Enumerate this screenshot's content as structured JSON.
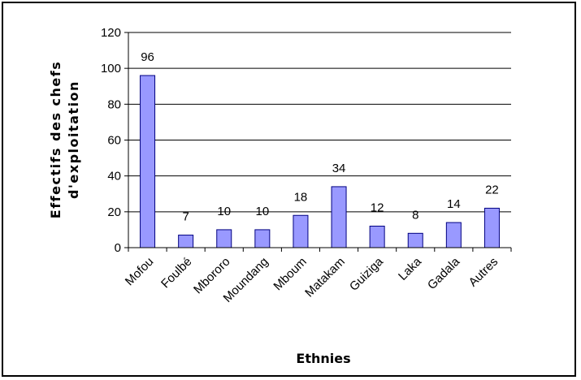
{
  "chart_data": {
    "type": "bar",
    "categories": [
      "Mofou",
      "Foulbé",
      "Mbororo",
      "Moundang",
      "Mboum",
      "Matakam",
      "Guiziga",
      "Laka",
      "Gadala",
      "Autres"
    ],
    "values": [
      96,
      7,
      10,
      10,
      18,
      34,
      12,
      8,
      14,
      22
    ],
    "data_labels": [
      "96",
      "7",
      "10",
      "10",
      "18",
      "34",
      "12",
      "8",
      "14",
      "22"
    ],
    "xlabel": "Ethnies",
    "ylabel": [
      "Effectifs des chefs",
      "d'exploitation"
    ],
    "ylim": [
      0,
      120
    ],
    "yticks": [
      0,
      20,
      40,
      60,
      80,
      100,
      120
    ],
    "grid": true,
    "legend": "none"
  },
  "colors": {
    "bar_fill": "#9999ff",
    "bar_stroke": "#000080",
    "grid": "#000000",
    "axis": "#000000"
  }
}
